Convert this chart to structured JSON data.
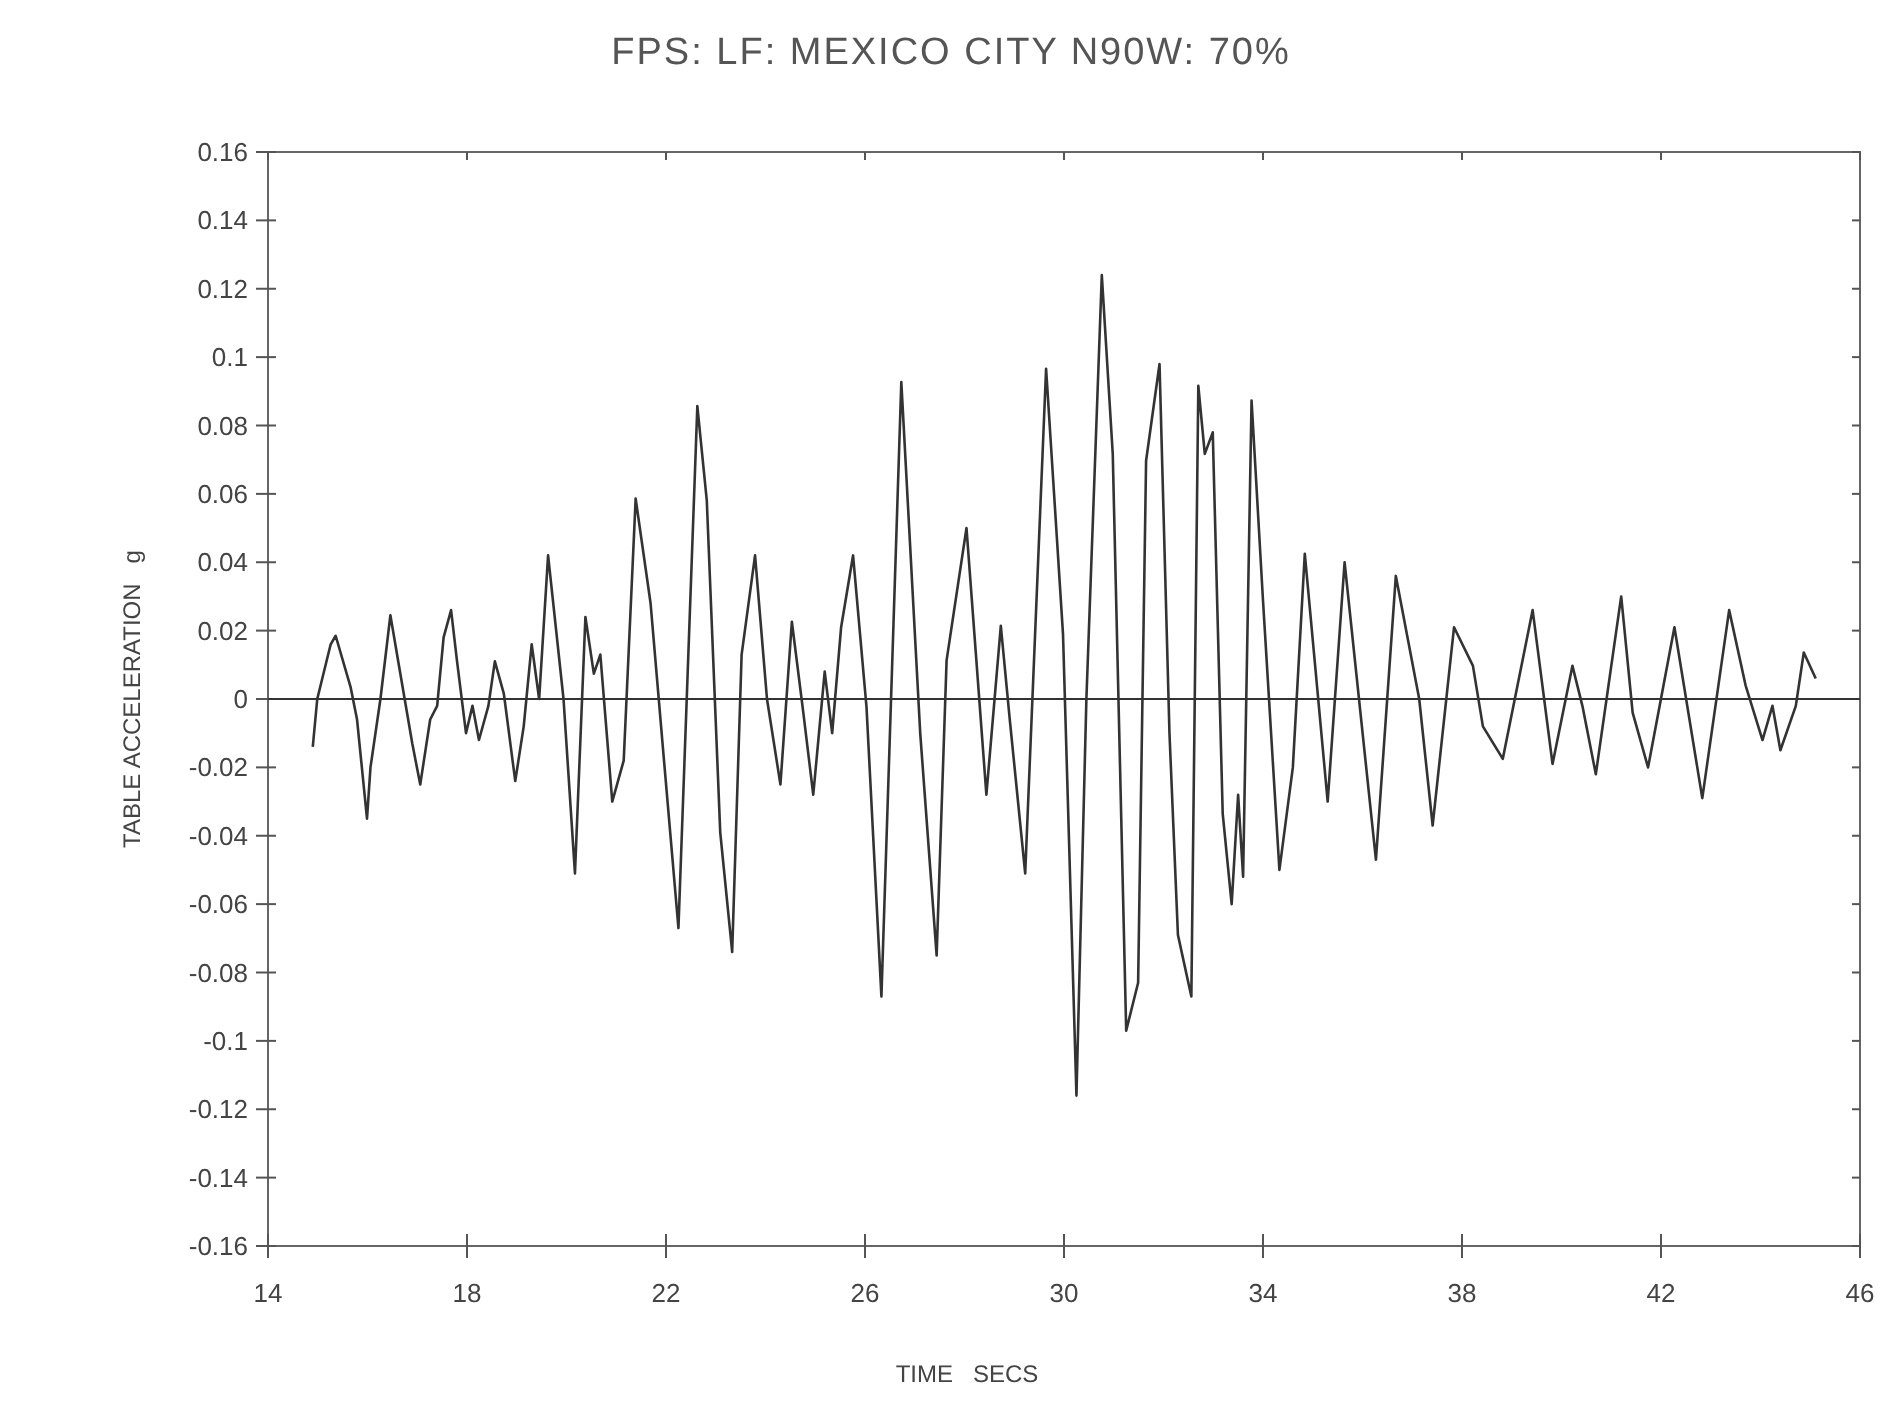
{
  "chart_data": {
    "type": "line",
    "title": "FPS: LF: MEXICO CITY N90W: 70%",
    "xlabel": "TIME   SECS",
    "ylabel": "TABLE ACCELERATION   g",
    "xlim": [
      14,
      46
    ],
    "xticks": [
      14,
      18,
      22,
      26,
      30,
      34,
      38,
      42,
      46
    ],
    "ylim": [
      -0.16,
      0.16
    ],
    "yticks": [
      -0.16,
      -0.14,
      -0.12,
      -0.1,
      -0.08,
      -0.06,
      -0.04,
      -0.02,
      0,
      0.02,
      0.04,
      0.06,
      0.08,
      0.1,
      0.12,
      0.14,
      0.16
    ],
    "grid": false,
    "marker": "none",
    "line_style": "solid",
    "ref_lines": [
      {
        "axis": "y",
        "value": 0,
        "color": "#333333"
      }
    ],
    "series": [
      {
        "color": "#333333",
        "x": [
          14.9,
          14.99,
          15.26,
          15.36,
          15.66,
          15.79,
          15.99,
          16.06,
          16.26,
          16.46,
          16.66,
          16.9,
          17.06,
          17.26,
          17.4,
          17.53,
          17.68,
          17.8,
          17.98,
          18.11,
          18.24,
          18.43,
          18.56,
          18.74,
          18.97,
          19.14,
          19.3,
          19.45,
          19.63,
          19.94,
          20.17,
          20.38,
          20.55,
          20.68,
          20.92,
          21.15,
          21.39,
          21.69,
          21.96,
          22.25,
          22.63,
          22.82,
          23.09,
          23.33,
          23.52,
          23.79,
          24.03,
          24.3,
          24.53,
          24.76,
          24.96,
          25.19,
          25.34,
          25.52,
          25.76,
          26.03,
          26.33,
          26.73,
          27.11,
          27.44,
          27.64,
          28.04,
          28.44,
          28.73,
          28.91,
          29.22,
          29.64,
          29.98,
          30.25,
          30.45,
          30.76,
          30.98,
          31.25,
          31.49,
          31.65,
          31.92,
          32.12,
          32.29,
          32.56,
          32.7,
          32.83,
          32.99,
          33.19,
          33.37,
          33.5,
          33.6,
          33.77,
          34.0,
          34.33,
          34.6,
          34.84,
          35.3,
          35.64,
          36.27,
          36.67,
          37.14,
          37.41,
          37.84,
          38.22,
          38.42,
          38.82,
          39.42,
          39.82,
          40.22,
          40.42,
          40.69,
          41.2,
          41.43,
          41.74,
          42.27,
          42.83,
          43.37,
          43.7,
          44.04,
          44.24,
          44.4,
          44.71,
          44.87,
          45.11
        ],
        "values": [
          -0.014,
          0,
          0.016,
          0.0185,
          0.0035,
          -0.006,
          -0.035,
          -0.02,
          0,
          0.0245,
          0.0074,
          -0.013,
          -0.025,
          -0.006,
          -0.002,
          0.018,
          0.026,
          0.011,
          -0.01,
          -0.002,
          -0.012,
          -0.002,
          0.011,
          0.0016,
          -0.024,
          -0.008,
          0.016,
          0,
          0.042,
          0,
          -0.051,
          0.024,
          0.0074,
          0.013,
          -0.03,
          -0.018,
          0.0586,
          0.028,
          -0.018,
          -0.067,
          0.0857,
          0.058,
          -0.039,
          -0.074,
          0.013,
          0.042,
          0,
          -0.025,
          0.0226,
          -0.004,
          -0.028,
          0.008,
          -0.01,
          0.021,
          0.042,
          -0.0023,
          -0.087,
          0.0927,
          -0.01,
          -0.075,
          0.0113,
          0.05,
          -0.028,
          0.0214,
          -0.006,
          -0.051,
          0.0966,
          0.019,
          -0.116,
          0,
          0.124,
          0.0717,
          -0.097,
          -0.083,
          0.0697,
          0.098,
          -0.01,
          -0.069,
          -0.087,
          0.0916,
          0.0717,
          0.078,
          -0.0335,
          -0.06,
          -0.028,
          -0.052,
          0.0873,
          0.0288,
          -0.05,
          -0.02,
          0.0425,
          -0.03,
          0.04,
          -0.047,
          0.036,
          0,
          -0.037,
          0.021,
          0.0097,
          -0.008,
          -0.0175,
          0.026,
          -0.019,
          0.0097,
          -0.002,
          -0.022,
          0.03,
          -0.004,
          -0.02,
          0.021,
          -0.029,
          0.026,
          0.004,
          -0.012,
          -0.002,
          -0.015,
          -0.002,
          0.0136,
          0.006
        ]
      }
    ]
  }
}
